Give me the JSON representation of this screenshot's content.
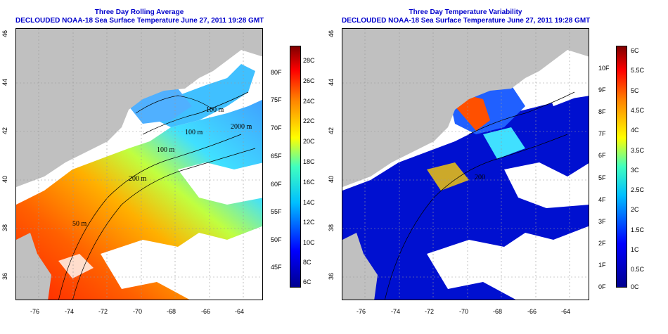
{
  "left_panel": {
    "title_line1": "Three Day Rolling Average",
    "title_line2": "DECLOUDED NOAA-18 Sea Surface Temperature June 27, 2011 19:28 GMT",
    "x_ticks": [
      "-76",
      "-74",
      "-72",
      "-70",
      "-68",
      "-66",
      "-64"
    ],
    "y_ticks": [
      "36",
      "38",
      "40",
      "42",
      "44",
      "46"
    ],
    "contour_labels": [
      "100 m",
      "100 m",
      "2000 m",
      "200 m",
      "50 m",
      "100 m"
    ],
    "colorbar_c": [
      "28C",
      "26C",
      "24C",
      "22C",
      "20C",
      "18C",
      "16C",
      "14C",
      "12C",
      "10C",
      "8C",
      "6C"
    ],
    "colorbar_f": [
      "80F",
      "75F",
      "70F",
      "65F",
      "60F",
      "55F",
      "50F",
      "45F"
    ],
    "colors": [
      "#00008f",
      "#0000ff",
      "#00bfff",
      "#40ffbf",
      "#ffff00",
      "#ff8000",
      "#ff0000",
      "#800000"
    ]
  },
  "right_panel": {
    "title_line1": "Three Day Temperature Variability",
    "title_line2": "DECLOUDED NOAA-18 Sea Surface Temperature June 27, 2011 19:28 GMT",
    "x_ticks": [
      "-76",
      "-74",
      "-72",
      "-70",
      "-68",
      "-66",
      "-64"
    ],
    "y_ticks": [
      "36",
      "38",
      "40",
      "42",
      "44",
      "46"
    ],
    "contour_labels": [
      "200"
    ],
    "colorbar_c": [
      "6C",
      "5.5C",
      "5C",
      "4.5C",
      "4C",
      "3.5C",
      "3C",
      "2.5C",
      "2C",
      "1.5C",
      "1C",
      "0.5C",
      "0C"
    ],
    "colorbar_f": [
      "10F",
      "9F",
      "8F",
      "7F",
      "6F",
      "5F",
      "4F",
      "3F",
      "2F",
      "1F",
      "0F"
    ],
    "colors": [
      "#00008f",
      "#0000ff",
      "#00bfff",
      "#40ffbf",
      "#ffff00",
      "#ff8000",
      "#ff0000",
      "#800000"
    ]
  },
  "land_color": "#c0c0c0",
  "ocean_no_data_color": "#ffffff"
}
